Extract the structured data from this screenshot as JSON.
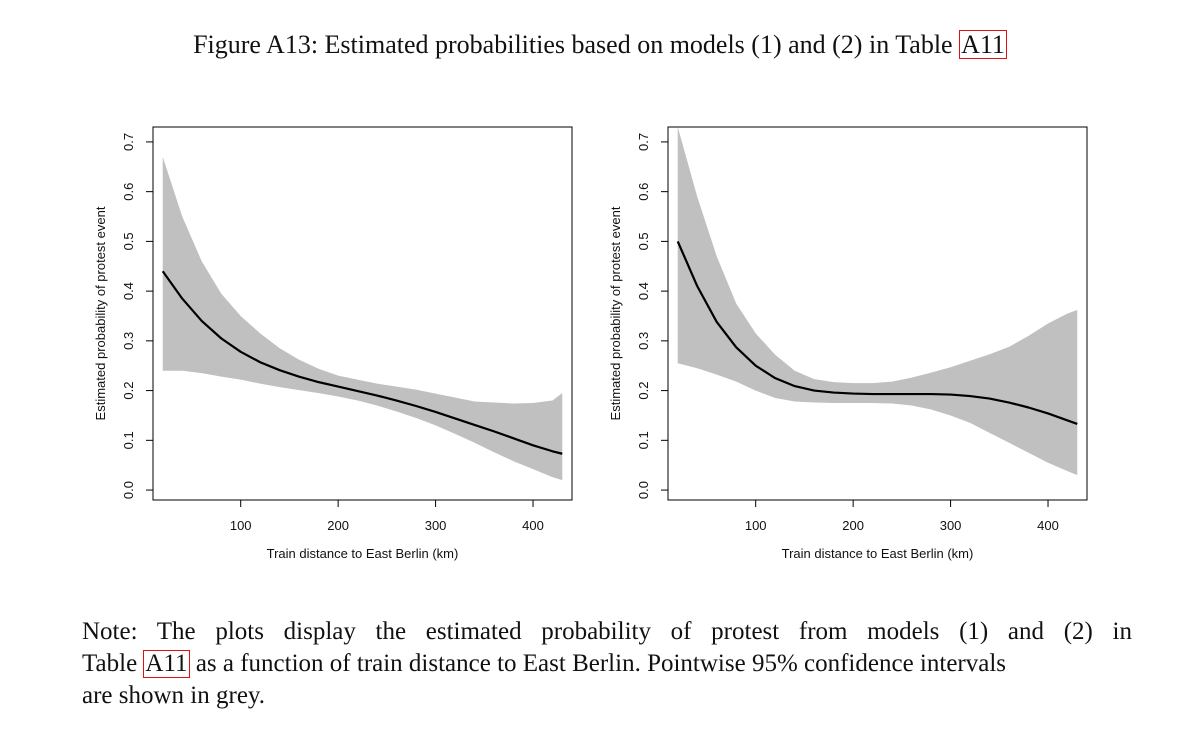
{
  "figure": {
    "title_prefix": "Figure A13: Estimated probabilities based on models (1) and (2) in Table ",
    "title_ref": "A11"
  },
  "note": {
    "line1": "Note: The plots display the estimated probability of protest from models (1) and (2) in",
    "line2_prefix": "Table ",
    "line2_ref": "A11",
    "line2_suffix": " as a function of train distance to East Berlin. Pointwise 95% confidence intervals",
    "line3": "are shown in grey."
  },
  "colors": {
    "band": "#c0c0c0",
    "line": "#000000",
    "ref_box": "#dd1111"
  },
  "chart_data": [
    {
      "type": "line",
      "title": "",
      "xlabel": "Train distance to East Berlin (km)",
      "ylabel": "Estimated probability of protest event",
      "xlim": [
        10,
        440
      ],
      "ylim": [
        -0.02,
        0.73
      ],
      "xticks": [
        100,
        200,
        300,
        400
      ],
      "yticks": [
        0.0,
        0.1,
        0.2,
        0.3,
        0.4,
        0.5,
        0.6,
        0.7
      ],
      "xtick_labels": [
        "100",
        "200",
        "300",
        "400"
      ],
      "ytick_labels": [
        "0.0",
        "0.1",
        "0.2",
        "0.3",
        "0.4",
        "0.5",
        "0.6",
        "0.7"
      ],
      "grid": false,
      "x": [
        20,
        40,
        60,
        80,
        100,
        120,
        140,
        160,
        180,
        200,
        220,
        240,
        260,
        280,
        300,
        320,
        340,
        360,
        380,
        400,
        420,
        430
      ],
      "y": [
        0.44,
        0.385,
        0.34,
        0.305,
        0.278,
        0.257,
        0.241,
        0.228,
        0.217,
        0.208,
        0.199,
        0.19,
        0.18,
        0.169,
        0.157,
        0.144,
        0.131,
        0.118,
        0.104,
        0.09,
        0.078,
        0.073
      ],
      "lower": [
        0.24,
        0.24,
        0.235,
        0.228,
        0.222,
        0.214,
        0.207,
        0.201,
        0.195,
        0.188,
        0.18,
        0.17,
        0.158,
        0.145,
        0.13,
        0.113,
        0.095,
        0.076,
        0.058,
        0.042,
        0.026,
        0.02
      ],
      "upper": [
        0.67,
        0.55,
        0.46,
        0.395,
        0.35,
        0.315,
        0.285,
        0.262,
        0.244,
        0.23,
        0.222,
        0.214,
        0.208,
        0.202,
        0.194,
        0.186,
        0.178,
        0.176,
        0.174,
        0.175,
        0.18,
        0.195
      ]
    },
    {
      "type": "line",
      "title": "",
      "xlabel": "Train distance to East Berlin (km)",
      "ylabel": "Estimated probability of protest event",
      "xlim": [
        10,
        440
      ],
      "ylim": [
        -0.02,
        0.73
      ],
      "xticks": [
        100,
        200,
        300,
        400
      ],
      "yticks": [
        0.0,
        0.1,
        0.2,
        0.3,
        0.4,
        0.5,
        0.6,
        0.7
      ],
      "xtick_labels": [
        "100",
        "200",
        "300",
        "400"
      ],
      "ytick_labels": [
        "0.0",
        "0.1",
        "0.2",
        "0.3",
        "0.4",
        "0.5",
        "0.6",
        "0.7"
      ],
      "grid": false,
      "x": [
        20,
        40,
        60,
        80,
        100,
        120,
        140,
        160,
        180,
        200,
        220,
        240,
        260,
        280,
        300,
        320,
        340,
        360,
        380,
        400,
        420,
        430
      ],
      "y": [
        0.5,
        0.41,
        0.338,
        0.287,
        0.25,
        0.225,
        0.209,
        0.2,
        0.196,
        0.194,
        0.193,
        0.193,
        0.193,
        0.193,
        0.192,
        0.189,
        0.184,
        0.176,
        0.166,
        0.154,
        0.14,
        0.133
      ],
      "lower": [
        0.255,
        0.245,
        0.232,
        0.218,
        0.2,
        0.185,
        0.178,
        0.176,
        0.175,
        0.175,
        0.175,
        0.174,
        0.17,
        0.162,
        0.15,
        0.135,
        0.115,
        0.095,
        0.075,
        0.055,
        0.038,
        0.03
      ],
      "upper": [
        0.73,
        0.59,
        0.47,
        0.375,
        0.315,
        0.272,
        0.24,
        0.223,
        0.217,
        0.215,
        0.215,
        0.218,
        0.226,
        0.236,
        0.247,
        0.26,
        0.273,
        0.288,
        0.31,
        0.335,
        0.355,
        0.362
      ]
    }
  ]
}
